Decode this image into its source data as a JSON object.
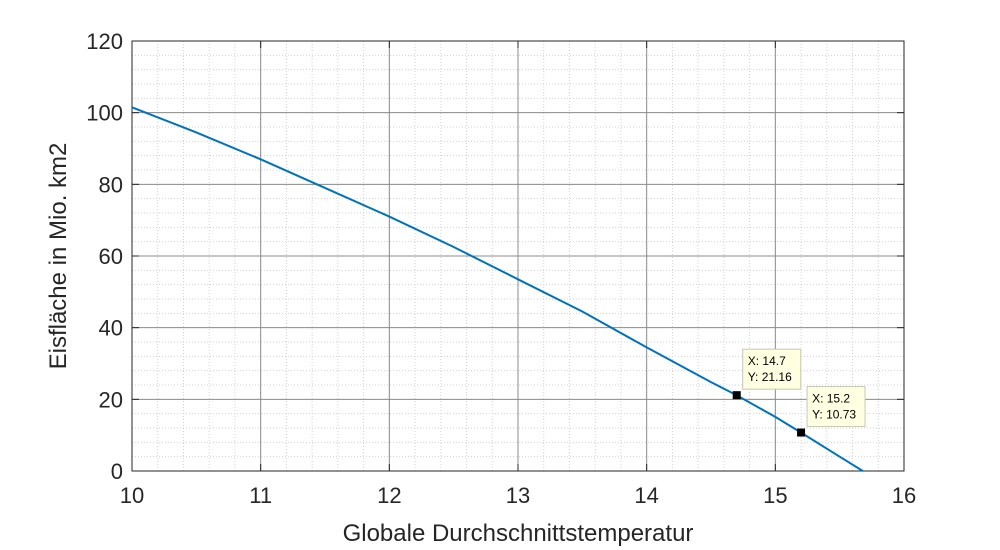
{
  "chart_data": {
    "type": "line",
    "title": "",
    "xlabel": "Globale Durchschnittstemperatur",
    "ylabel": "Eisfläche in Mio. km2",
    "xlim": [
      10,
      16
    ],
    "ylim": [
      0,
      120
    ],
    "xticks": [
      10,
      11,
      12,
      13,
      14,
      15,
      16
    ],
    "yticks": [
      0,
      20,
      40,
      60,
      80,
      100,
      120
    ],
    "x_minor_step": 0.2,
    "y_minor_step": 4,
    "grid": true,
    "minor_grid": true,
    "series": [
      {
        "color": "#0072BD",
        "x": [
          10.0,
          10.5,
          11.0,
          11.5,
          12.0,
          12.5,
          13.0,
          13.5,
          14.0,
          14.5,
          14.7,
          15.0,
          15.2,
          15.5,
          15.68
        ],
        "y": [
          101.5,
          94.5,
          87.0,
          79.0,
          71.0,
          62.5,
          53.5,
          44.5,
          34.5,
          24.8,
          21.16,
          15.1,
          10.73,
          4.0,
          0.0
        ]
      }
    ],
    "datatips": [
      {
        "x": 14.7,
        "y": 21.16,
        "line1": "X: 14.7",
        "line2": "Y: 21.16"
      },
      {
        "x": 15.2,
        "y": 10.73,
        "line1": "X: 15.2",
        "line2": "Y: 10.73"
      }
    ]
  }
}
